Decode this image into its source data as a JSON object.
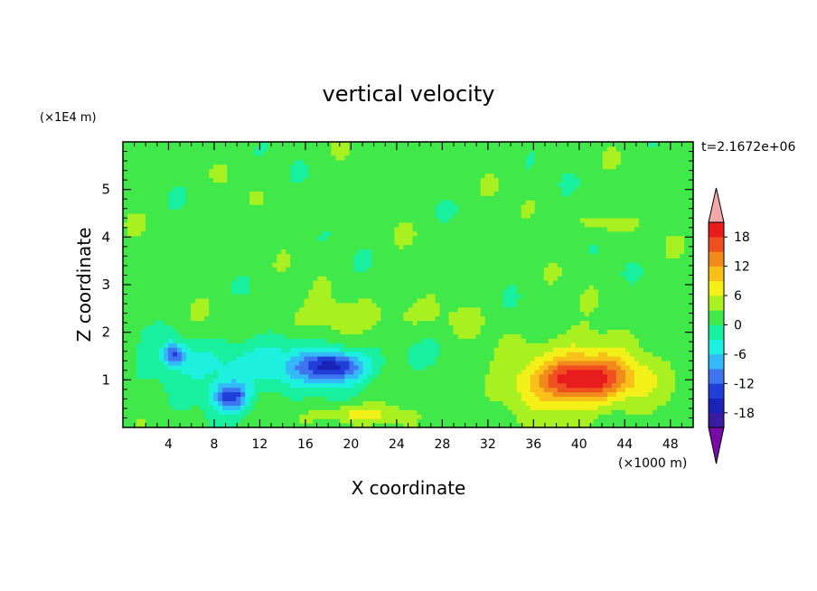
{
  "chart_data": {
    "type": "heatmap",
    "title": "vertical velocity",
    "xlabel": "X coordinate",
    "ylabel": "Z coordinate",
    "x_unit": "(×1000 m)",
    "y_unit": "(×1E4 m)",
    "time_label": "t=2.1672e+06",
    "xlim": [
      0,
      50
    ],
    "ylim": [
      0,
      6
    ],
    "x_ticks": [
      4,
      8,
      12,
      16,
      20,
      24,
      28,
      32,
      36,
      40,
      44,
      48
    ],
    "x_tick_labels": [
      "4",
      "8",
      "12",
      "16",
      "20",
      "24",
      "28",
      "32",
      "36",
      "40",
      "44",
      "48"
    ],
    "y_ticks": [
      1,
      2,
      3,
      4,
      5
    ],
    "y_tick_labels": [
      "1",
      "2",
      "3",
      "4",
      "5"
    ],
    "colorbar": {
      "levels": [
        -21,
        -18,
        -15,
        -12,
        -9,
        -6,
        -3,
        0,
        3,
        6,
        9,
        12,
        15,
        18,
        21
      ],
      "tick_values": [
        -18,
        -12,
        -6,
        0,
        6,
        12,
        18
      ],
      "tick_labels": [
        "-18",
        "-12",
        "-6",
        "0",
        "6",
        "12",
        "18"
      ],
      "colors": [
        "#7a0aa8",
        "#3a1ca0",
        "#1a22b8",
        "#1f3fd8",
        "#3f74f0",
        "#33b8f8",
        "#1ef0e0",
        "#18f0a0",
        "#40e84a",
        "#a8f020",
        "#f2f018",
        "#f8c018",
        "#f08a1a",
        "#f05020",
        "#e81c1c",
        "#f4a8a8"
      ],
      "extend": "both"
    },
    "features": [
      {
        "x": 40,
        "z": 1.0,
        "value": 15,
        "sx": 4.0,
        "sz": 0.45
      },
      {
        "x": 40.5,
        "z": 1.1,
        "value": 6,
        "sx": 6.0,
        "sz": 0.8
      },
      {
        "x": 9.5,
        "z": 0.65,
        "value": -14,
        "sx": 1.6,
        "sz": 0.3
      },
      {
        "x": 18.5,
        "z": 1.3,
        "value": -14,
        "sx": 2.8,
        "sz": 0.3
      },
      {
        "x": 4.5,
        "z": 1.55,
        "value": -11,
        "sx": 0.9,
        "sz": 0.22
      },
      {
        "x": 21,
        "z": 0.3,
        "value": 6,
        "sx": 3.5,
        "sz": 0.22
      },
      {
        "x": 12,
        "z": 1.3,
        "value": -6,
        "sx": 10,
        "sz": 0.6
      },
      {
        "x": 42,
        "z": 4.3,
        "value": 3,
        "sx": 2.0,
        "sz": 0.25
      },
      {
        "x": 20,
        "z": 2.3,
        "value": 3,
        "sx": 8,
        "sz": 0.4
      }
    ]
  }
}
